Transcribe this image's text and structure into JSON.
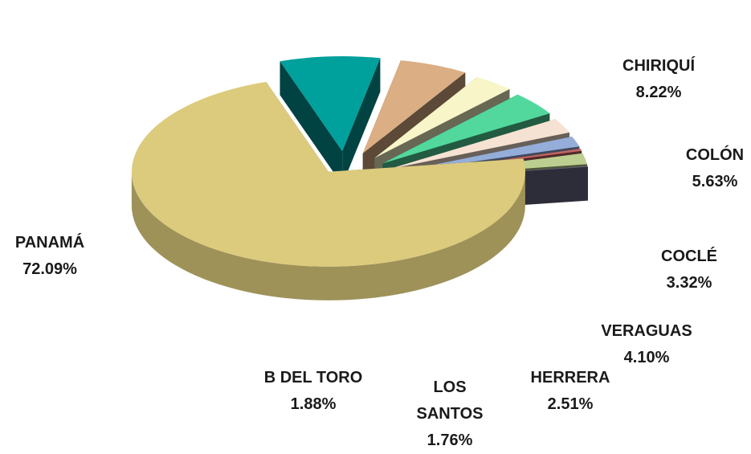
{
  "chart_data": {
    "type": "pie",
    "categories": [
      "PANAMÁ",
      "CHIRIQUÍ",
      "COLÓN",
      "COCLÉ",
      "VERAGUAS",
      "HERRERA",
      "LOS SANTOS",
      null,
      "B DEL TORO",
      null
    ],
    "values": [
      72.09,
      8.22,
      5.63,
      3.32,
      4.1,
      2.51,
      1.76,
      0.39,
      1.88,
      0.1
    ],
    "value_labels": [
      "72.09%",
      "8.22%",
      "5.63%",
      "3.32%",
      "4.10%",
      "2.51%",
      "1.76%",
      null,
      "1.88%",
      null
    ],
    "colors": [
      "#dccb7c",
      "#00a09c",
      "#dcae84",
      "#f8f6c8",
      "#52d89c",
      "#f6e2d2",
      "#95add9",
      "#c26464",
      "#bccf90",
      "#6a6a88"
    ]
  }
}
